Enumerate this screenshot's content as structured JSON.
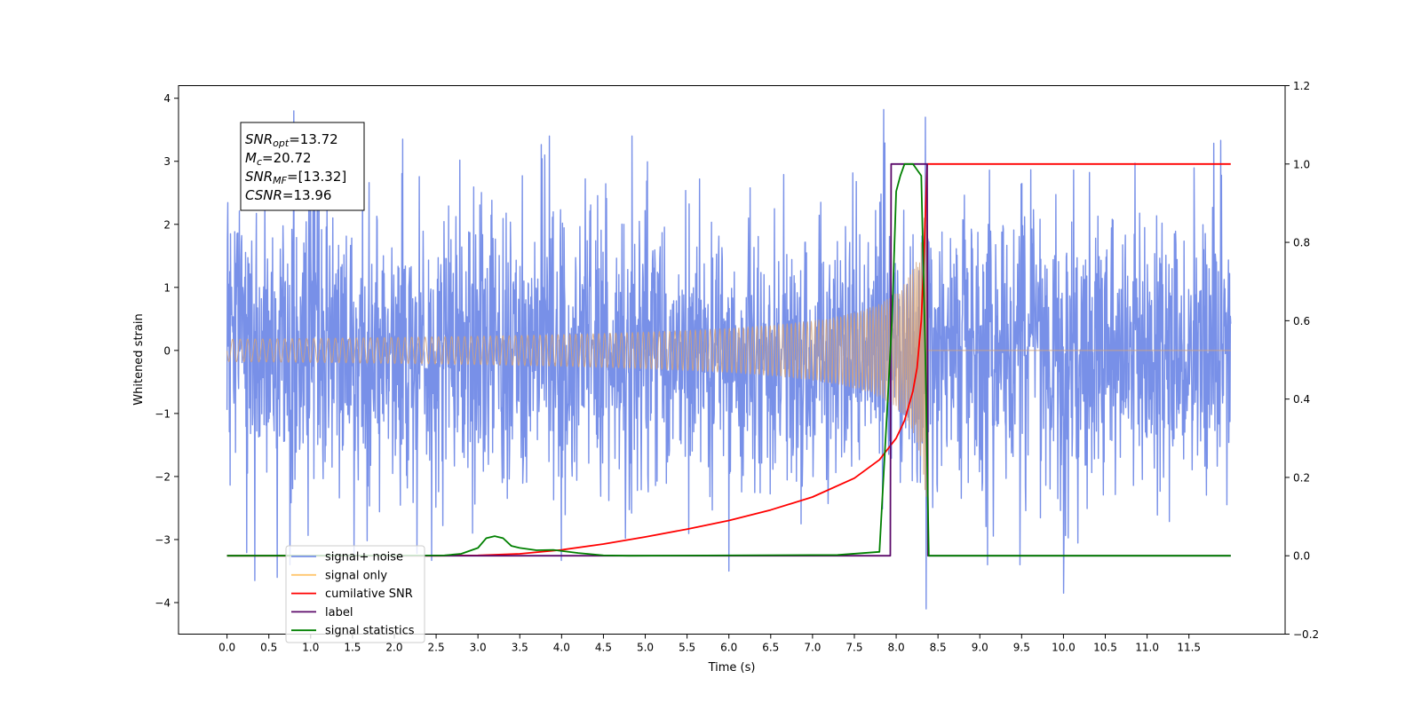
{
  "chart_data": {
    "type": "line",
    "title": "",
    "xlabel": "Time (s)",
    "ylabel": "Whitened strain",
    "xlim": [
      -0.58,
      12.65
    ],
    "ylim": [
      -4.5,
      4.2
    ],
    "y2lim": [
      -0.2,
      1.2
    ],
    "xticks": [
      0.0,
      0.5,
      1.0,
      1.5,
      2.0,
      2.5,
      3.0,
      3.5,
      4.0,
      4.5,
      5.0,
      5.5,
      6.0,
      6.5,
      7.0,
      7.5,
      8.0,
      8.5,
      9.0,
      9.5,
      10.0,
      10.5,
      11.0,
      11.5
    ],
    "xtick_labels": [
      "0.0",
      "0.5",
      "1.0",
      "1.5",
      "2.0",
      "2.5",
      "3.0",
      "3.5",
      "4.0",
      "4.5",
      "5.0",
      "5.5",
      "6.0",
      "6.5",
      "7.0",
      "7.5",
      "8.0",
      "8.5",
      "9.0",
      "9.5",
      "10.0",
      "10.5",
      "11.0",
      "11.5"
    ],
    "yticks": [
      -4,
      -3,
      -2,
      -1,
      0,
      1,
      2,
      3,
      4
    ],
    "ytick_labels": [
      "−4",
      "−3",
      "−2",
      "−1",
      "0",
      "1",
      "2",
      "3",
      "4"
    ],
    "y2ticks": [
      -0.2,
      0.0,
      0.2,
      0.4,
      0.6,
      0.8,
      1.0,
      1.2
    ],
    "y2tick_labels": [
      "−0.2",
      "0.0",
      "0.2",
      "0.4",
      "0.6",
      "0.8",
      "1.0",
      "1.2"
    ],
    "grid": false,
    "legend_position": "lower-left",
    "legend": [
      {
        "label": "signal+ noise",
        "color": "#7890e8"
      },
      {
        "label": "signal only",
        "color": "#ffc66e"
      },
      {
        "label": "cumilative SNR",
        "color": "#ff0000"
      },
      {
        "label": "label",
        "color": "#5c0a6a"
      },
      {
        "label": "signal statistics",
        "color": "#008000"
      }
    ],
    "annotation": {
      "lines": [
        {
          "italic": "SNR",
          "sub": "opt",
          "rest": "=13.72"
        },
        {
          "italic": "M",
          "sub": "c",
          "rest": "=20.72"
        },
        {
          "italic": "SNR",
          "sub": "MF",
          "rest": "=[13.32]"
        },
        {
          "italic": "CSNR",
          "sub": "",
          "rest": "=13.96"
        }
      ]
    },
    "series": [
      {
        "name": "signal+ noise",
        "axis": "left",
        "color": "#7890e8",
        "noise": {
          "t_start": 0.0,
          "t_end": 12.0,
          "sigma": 1.1,
          "peaks": [
            [
              0.8,
              3.8
            ],
            [
              7.85,
              3.82
            ],
            [
              8.35,
              3.7
            ],
            [
              8.36,
              -4.1
            ],
            [
              0.33,
              -3.65
            ],
            [
              0.6,
              -3.6
            ],
            [
              10.0,
              -3.85
            ],
            [
              6.0,
              -3.5
            ],
            [
              1.1,
              3.45
            ],
            [
              2.1,
              3.35
            ]
          ]
        }
      },
      {
        "name": "signal only",
        "axis": "left",
        "color": "#d2a27a",
        "chirp": {
          "t_start": 0.0,
          "t_merge": 8.37,
          "t_end": 12.0,
          "peak_amp": 2.7
        }
      },
      {
        "name": "cumilative SNR",
        "axis": "right",
        "color": "#ff0000",
        "x": [
          0.0,
          1.0,
          2.0,
          2.5,
          3.0,
          3.5,
          4.0,
          4.5,
          5.0,
          5.5,
          6.0,
          6.5,
          7.0,
          7.5,
          7.8,
          8.0,
          8.1,
          8.2,
          8.25,
          8.3,
          8.33,
          8.37,
          9.0,
          10.0,
          11.0,
          12.0
        ],
        "y": [
          0.0,
          0.0,
          0.0,
          0.0,
          0.001,
          0.005,
          0.015,
          0.03,
          0.048,
          0.068,
          0.09,
          0.117,
          0.15,
          0.198,
          0.245,
          0.3,
          0.345,
          0.42,
          0.48,
          0.6,
          0.75,
          1.0,
          1.0,
          1.0,
          1.0,
          1.0
        ]
      },
      {
        "name": "label",
        "axis": "right",
        "color": "#5c0a6a",
        "x": [
          0.0,
          7.93,
          7.94,
          8.37,
          8.38,
          12.0
        ],
        "y": [
          0.0,
          0.0,
          1.0,
          1.0,
          0.0,
          0.0
        ]
      },
      {
        "name": "signal statistics",
        "axis": "right",
        "color": "#008000",
        "x": [
          0.0,
          2.6,
          2.8,
          3.0,
          3.1,
          3.2,
          3.3,
          3.4,
          3.5,
          3.7,
          3.9,
          4.2,
          4.5,
          4.8,
          7.3,
          7.8,
          7.95,
          8.0,
          8.05,
          8.1,
          8.2,
          8.3,
          8.35,
          8.39,
          12.0
        ],
        "y": [
          0.0,
          0.001,
          0.005,
          0.02,
          0.045,
          0.05,
          0.045,
          0.025,
          0.02,
          0.014,
          0.015,
          0.007,
          0.001,
          0.0,
          0.002,
          0.01,
          0.6,
          0.93,
          0.97,
          1.0,
          1.0,
          0.97,
          0.5,
          0.0,
          0.0
        ]
      }
    ]
  }
}
